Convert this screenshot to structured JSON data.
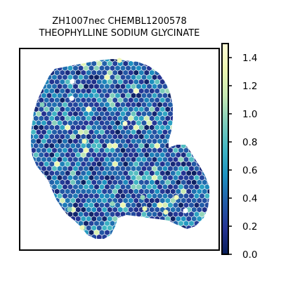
{
  "chart_data": {
    "type": "heatmap",
    "subtype": "hexagonal spatial expression map",
    "title": "ZH1007nec CHEMBL1200578",
    "subtitle": "THEOPHYLLINE SODIUM GLYCINATE",
    "xlabel": "",
    "ylabel": "",
    "axis_ticks_visible": false,
    "grid": false,
    "colormap": "YlGnBu",
    "colormap_stops": [
      "#081d58",
      "#253494",
      "#225ea8",
      "#1d91c0",
      "#41b6c4",
      "#7fcdbb",
      "#c7e9b4",
      "#edf8b1",
      "#ffffd9"
    ],
    "colorbar": {
      "position": "right",
      "range": [
        0.0,
        1.5
      ],
      "ticks": [
        0.0,
        0.2,
        0.4,
        0.6,
        0.8,
        1.0,
        1.2,
        1.4
      ],
      "tick_labels": [
        "0.0",
        "0.2",
        "0.4",
        "0.6",
        "0.8",
        "1.0",
        "1.2",
        "1.4"
      ]
    },
    "value_distribution": {
      "typical_range": [
        0.1,
        0.6
      ],
      "max_observed": 1.45,
      "mean_approx": 0.38
    }
  }
}
